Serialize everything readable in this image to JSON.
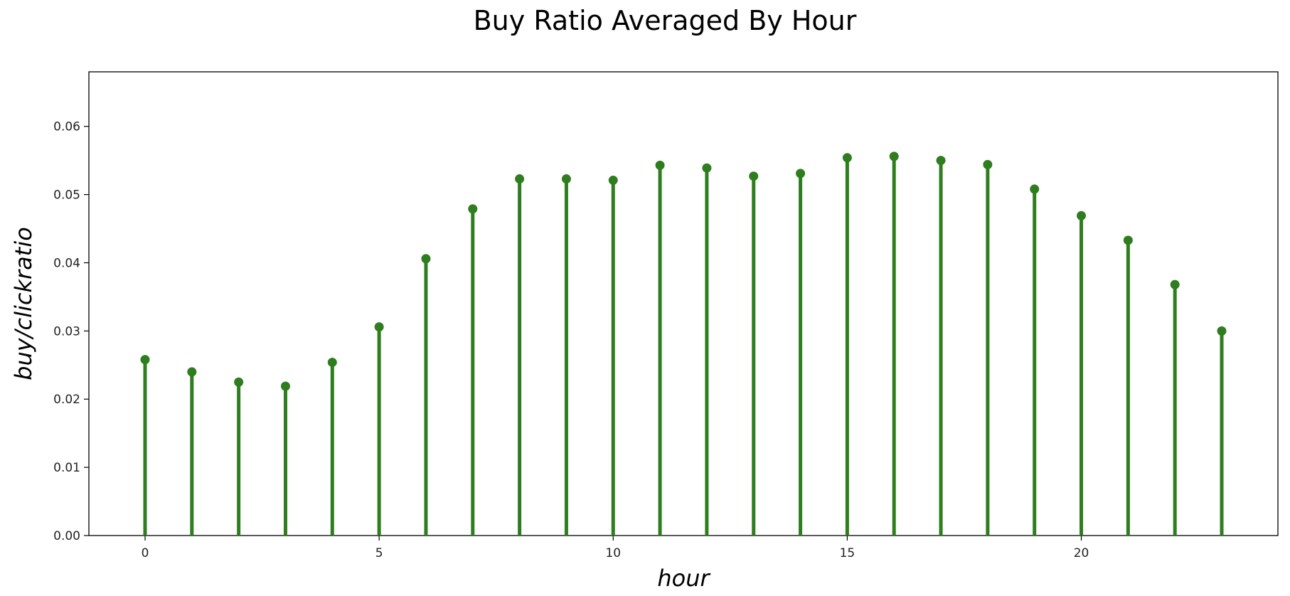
{
  "chart_data": {
    "type": "stem",
    "title": "Buy Ratio Averaged By Hour",
    "xlabel": "hour",
    "ylabel": "buy/clickratio",
    "x": [
      0,
      1,
      2,
      3,
      4,
      5,
      6,
      7,
      8,
      9,
      10,
      11,
      12,
      13,
      14,
      15,
      16,
      17,
      18,
      19,
      20,
      21,
      22,
      23
    ],
    "values": [
      0.0258,
      0.024,
      0.0225,
      0.0219,
      0.0254,
      0.0306,
      0.0406,
      0.0479,
      0.0523,
      0.0523,
      0.0521,
      0.0543,
      0.0539,
      0.0527,
      0.0531,
      0.0554,
      0.0556,
      0.055,
      0.0544,
      0.0508,
      0.0469,
      0.0433,
      0.0368,
      0.03
    ],
    "xlim": [
      -1.2,
      24.2
    ],
    "ylim": [
      0,
      0.068
    ],
    "xticks": [
      0,
      5,
      10,
      15,
      20
    ],
    "xtick_labels": [
      "0",
      "5",
      "10",
      "15",
      "20"
    ],
    "yticks": [
      0,
      0.01,
      0.02,
      0.03,
      0.04,
      0.05,
      0.06
    ],
    "ytick_labels": [
      "0.00",
      "0.01",
      "0.02",
      "0.03",
      "0.04",
      "0.05",
      "0.06"
    ],
    "grid": false,
    "color": "#2e7d1e"
  }
}
